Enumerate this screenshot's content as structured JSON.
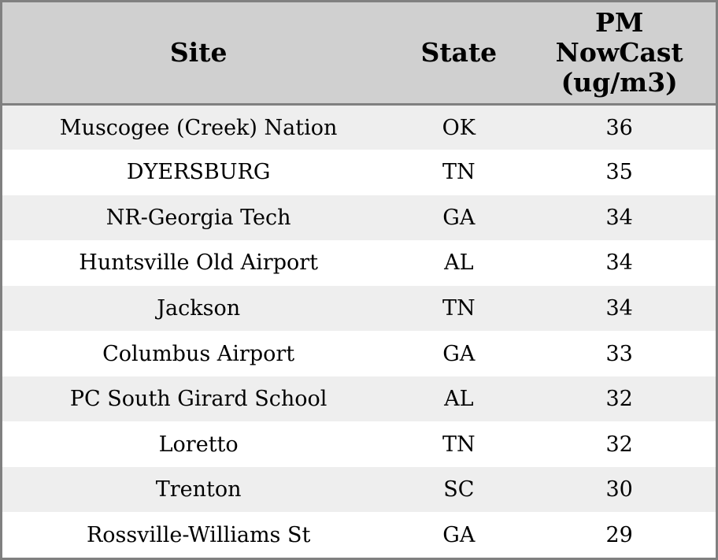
{
  "colors": {
    "border": "#808080",
    "header_bg": "#d0d0d0",
    "row_alt_bg": "#eeeeee",
    "row_bg": "#ffffff",
    "text": "#000000"
  },
  "table": {
    "headers": [
      {
        "label": "Site"
      },
      {
        "label": "State"
      },
      {
        "label": "PM\nNowCast\n(ug/m3)"
      }
    ],
    "rows": [
      {
        "site": "Muscogee (Creek) Nation",
        "state": "OK",
        "value": "36"
      },
      {
        "site": "DYERSBURG",
        "state": "TN",
        "value": "35"
      },
      {
        "site": "NR-Georgia Tech",
        "state": "GA",
        "value": "34"
      },
      {
        "site": "Huntsville Old Airport",
        "state": "AL",
        "value": "34"
      },
      {
        "site": "Jackson",
        "state": "TN",
        "value": "34"
      },
      {
        "site": "Columbus Airport",
        "state": "GA",
        "value": "33"
      },
      {
        "site": "PC South Girard School",
        "state": "AL",
        "value": "32"
      },
      {
        "site": "Loretto",
        "state": "TN",
        "value": "32"
      },
      {
        "site": "Trenton",
        "state": "SC",
        "value": "30"
      },
      {
        "site": "Rossville-Williams St",
        "state": "GA",
        "value": "29"
      }
    ]
  },
  "chart_data": {
    "type": "table",
    "columns": [
      "Site",
      "State",
      "PM NowCast (ug/m3)"
    ],
    "rows": [
      [
        "Muscogee (Creek) Nation",
        "OK",
        36
      ],
      [
        "DYERSBURG",
        "TN",
        35
      ],
      [
        "NR-Georgia Tech",
        "GA",
        34
      ],
      [
        "Huntsville Old Airport",
        "AL",
        34
      ],
      [
        "Jackson",
        "TN",
        34
      ],
      [
        "Columbus Airport",
        "GA",
        33
      ],
      [
        "PC South Girard School",
        "AL",
        32
      ],
      [
        "Loretto",
        "TN",
        32
      ],
      [
        "Trenton",
        "SC",
        30
      ],
      [
        "Rossville-Williams St",
        "GA",
        29
      ]
    ]
  }
}
